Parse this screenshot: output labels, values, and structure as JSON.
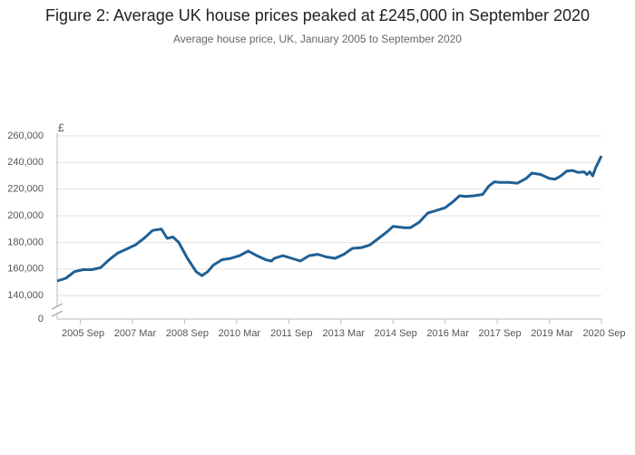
{
  "chart_data": {
    "type": "line",
    "title": "Figure 2: Average UK house prices peaked at £245,000 in September 2020",
    "subtitle": "Average house price, UK, January 2005 to September 2020",
    "y_unit": "£",
    "x": [
      "2005-01",
      "2005-04",
      "2005-07",
      "2005-10",
      "2006-01",
      "2006-04",
      "2006-07",
      "2006-10",
      "2007-01",
      "2007-04",
      "2007-07",
      "2007-10",
      "2008-01",
      "2008-03",
      "2008-05",
      "2008-07",
      "2008-10",
      "2009-01",
      "2009-03",
      "2009-05",
      "2009-07",
      "2009-10",
      "2010-01",
      "2010-04",
      "2010-07",
      "2010-10",
      "2011-01",
      "2011-03",
      "2011-04",
      "2011-07",
      "2011-10",
      "2012-01",
      "2012-04",
      "2012-07",
      "2012-10",
      "2013-01",
      "2013-04",
      "2013-07",
      "2013-10",
      "2014-01",
      "2014-04",
      "2014-07",
      "2014-09",
      "2015-01",
      "2015-03",
      "2015-06",
      "2015-09",
      "2015-12",
      "2016-03",
      "2016-06",
      "2016-08",
      "2016-10",
      "2017-01",
      "2017-04",
      "2017-06",
      "2017-08",
      "2017-10",
      "2018-01",
      "2018-04",
      "2018-07",
      "2018-09",
      "2018-12",
      "2019-03",
      "2019-05",
      "2019-07",
      "2019-09",
      "2019-11",
      "2020-01",
      "2020-03",
      "2020-04",
      "2020-05",
      "2020-06",
      "2020-07",
      "2020-09"
    ],
    "series": [
      {
        "name": "Average house price",
        "color": "#206095",
        "values": [
          151000,
          153000,
          158000,
          159500,
          159500,
          161000,
          167000,
          172000,
          175000,
          178000,
          183000,
          189000,
          190000,
          183000,
          184000,
          180000,
          168000,
          158000,
          155000,
          158000,
          163000,
          167000,
          168000,
          170000,
          173500,
          170000,
          167000,
          166000,
          168000,
          170000,
          168000,
          166000,
          170000,
          171000,
          169000,
          168000,
          171000,
          175500,
          176000,
          178000,
          183000,
          188000,
          192000,
          191000,
          191000,
          195000,
          202000,
          204000,
          206000,
          211000,
          215000,
          214500,
          215000,
          216000,
          222000,
          225500,
          225000,
          225000,
          224500,
          228000,
          232000,
          231000,
          228000,
          227500,
          230000,
          233500,
          234000,
          232500,
          233000,
          231000,
          233000,
          230000,
          236000,
          245000
        ]
      }
    ],
    "xlim": [
      "2005-01",
      "2020-09"
    ],
    "xticks": [
      {
        "value": "2005-09",
        "label": "2005 Sep"
      },
      {
        "value": "2007-03",
        "label": "2007 Mar"
      },
      {
        "value": "2008-09",
        "label": "2008 Sep"
      },
      {
        "value": "2010-03",
        "label": "2010 Mar"
      },
      {
        "value": "2011-09",
        "label": "2011 Sep"
      },
      {
        "value": "2013-03",
        "label": "2013 Mar"
      },
      {
        "value": "2014-09",
        "label": "2014 Sep"
      },
      {
        "value": "2016-03",
        "label": "2016 Mar"
      },
      {
        "value": "2017-09",
        "label": "2017 Sep"
      },
      {
        "value": "2019-03",
        "label": "2019 Mar"
      },
      {
        "value": "2020-09",
        "label": "2020 Sep"
      }
    ],
    "ylim": [
      136000,
      262000
    ],
    "yticks": [
      {
        "value": 140000,
        "label": "140,000"
      },
      {
        "value": 160000,
        "label": "160,000"
      },
      {
        "value": 180000,
        "label": "180,000"
      },
      {
        "value": 200000,
        "label": "200,000"
      },
      {
        "value": 220000,
        "label": "220,000"
      },
      {
        "value": 240000,
        "label": "240,000"
      },
      {
        "value": 260000,
        "label": "260,000"
      }
    ],
    "y_break_tick": 0,
    "grid": true
  }
}
